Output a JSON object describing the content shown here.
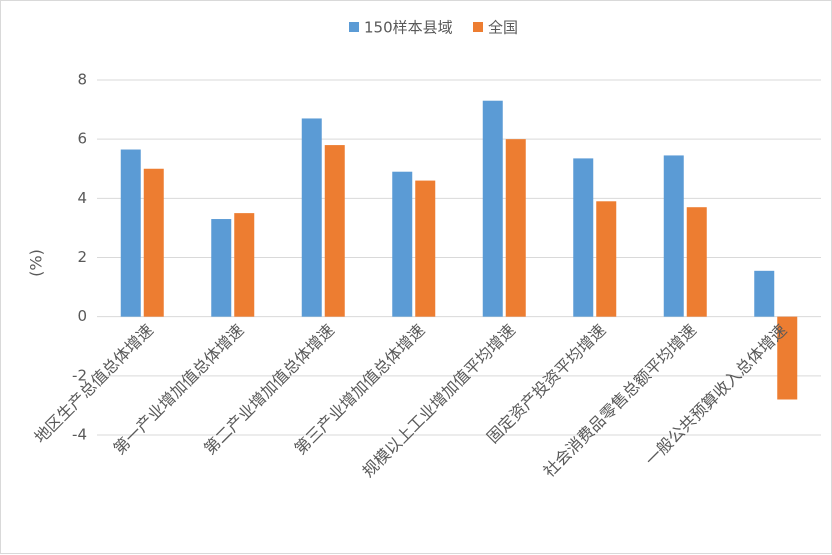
{
  "chart_data": {
    "type": "bar",
    "ylabel": "(%)",
    "ylim": [
      -4,
      8
    ],
    "yticks": [
      -4,
      -2,
      0,
      2,
      4,
      6,
      8
    ],
    "grid": true,
    "legend_position": "top-center",
    "categories": [
      "地区生产总值总体增速",
      "第一产业增加值总体增速",
      "第二产业增加值总体增速",
      "第三产业增加值总体增速",
      "规模以上工业增加值平均增速",
      "固定资产投资平均增速",
      "社会消费品零售总额平均增速",
      "一般公共预算收入总体增速"
    ],
    "series": [
      {
        "name": "150样本县域",
        "color": "#5B9BD5",
        "values": [
          5.65,
          3.3,
          6.7,
          4.9,
          7.3,
          5.35,
          5.45,
          1.55
        ]
      },
      {
        "name": "全国",
        "color": "#ED7D31",
        "values": [
          5.0,
          3.5,
          5.8,
          4.6,
          6.0,
          3.9,
          3.7,
          -2.8
        ]
      }
    ]
  }
}
